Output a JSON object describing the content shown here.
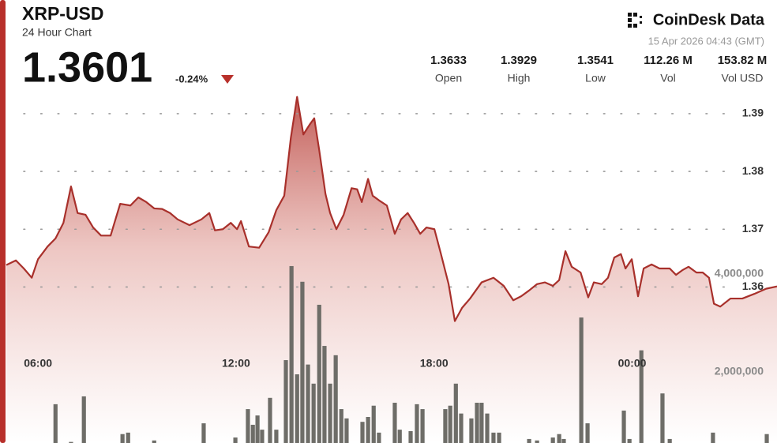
{
  "header": {
    "symbol": "XRP-USD",
    "subtitle": "24 Hour Chart",
    "price": "1.3601",
    "change": "-0.24%",
    "brand": "CoinDesk Data",
    "timestamp": "15 Apr 2026 04:43 (GMT)"
  },
  "stats": [
    {
      "value": "1.3633",
      "label": "Open"
    },
    {
      "value": "1.3929",
      "label": "High"
    },
    {
      "value": "1.3541",
      "label": "Low"
    },
    {
      "value": "112.26 M",
      "label": "Vol"
    },
    {
      "value": "153.82 M",
      "label": "Vol USD"
    }
  ],
  "chart_data": {
    "type": "line",
    "xlim": [
      5.04,
      28.39
    ],
    "xticks": [
      {
        "value": 6,
        "label": "06:00"
      },
      {
        "value": 12,
        "label": "12:00"
      },
      {
        "value": 18,
        "label": "18:00"
      },
      {
        "value": 24,
        "label": "00:00"
      }
    ],
    "ylim": [
      1.333,
      1.396
    ],
    "yticks": [
      1.36,
      1.37,
      1.38,
      1.39
    ],
    "y2lim": [
      548000,
      7980000
    ],
    "y2ticks": [
      {
        "value": 2000000,
        "label": "2,000,000"
      },
      {
        "value": 4000000,
        "label": "4,000,000"
      }
    ],
    "grid": true,
    "series": [
      {
        "name": "Price",
        "color": "#a8302b",
        "x": [
          5.04,
          5.33,
          5.57,
          5.81,
          6.0,
          6.29,
          6.53,
          6.77,
          7.0,
          7.2,
          7.44,
          7.67,
          7.91,
          8.2,
          8.49,
          8.8,
          9.04,
          9.28,
          9.52,
          9.76,
          10.0,
          10.23,
          10.59,
          10.95,
          11.19,
          11.36,
          11.6,
          11.84,
          12.03,
          12.15,
          12.39,
          12.7,
          12.99,
          13.22,
          13.46,
          13.66,
          13.85,
          14.04,
          14.23,
          14.37,
          14.52,
          14.71,
          14.85,
          15.04,
          15.26,
          15.5,
          15.67,
          15.81,
          16.0,
          16.14,
          16.33,
          16.57,
          16.81,
          17.0,
          17.2,
          17.39,
          17.58,
          17.77,
          18.01,
          18.2,
          18.44,
          18.63,
          18.85,
          19.09,
          19.44,
          19.8,
          20.11,
          20.4,
          20.64,
          20.88,
          21.12,
          21.36,
          21.6,
          21.79,
          21.98,
          22.17,
          22.44,
          22.67,
          22.84,
          23.08,
          23.27,
          23.46,
          23.66,
          23.8,
          23.99,
          24.18,
          24.35,
          24.59,
          24.83,
          25.14,
          25.33,
          25.52,
          25.71,
          25.95,
          26.14,
          26.33,
          26.48,
          26.67,
          26.98,
          27.34,
          27.7,
          28.06,
          28.39
        ],
        "values": [
          1.3638,
          1.3646,
          1.3632,
          1.3616,
          1.3648,
          1.367,
          1.3684,
          1.3711,
          1.3774,
          1.3728,
          1.3725,
          1.3703,
          1.3689,
          1.3689,
          1.3744,
          1.3741,
          1.3755,
          1.3747,
          1.3736,
          1.3735,
          1.3728,
          1.3717,
          1.3707,
          1.3717,
          1.3728,
          1.3698,
          1.37,
          1.3711,
          1.37,
          1.3714,
          1.367,
          1.3668,
          1.3695,
          1.3733,
          1.3758,
          1.3858,
          1.3929,
          1.3864,
          1.3881,
          1.3892,
          1.3837,
          1.3761,
          1.3728,
          1.37,
          1.3725,
          1.3771,
          1.3769,
          1.3747,
          1.3787,
          1.3758,
          1.375,
          1.3741,
          1.3692,
          1.3717,
          1.3728,
          1.3711,
          1.3692,
          1.3703,
          1.37,
          1.3659,
          1.3605,
          1.3541,
          1.3564,
          1.358,
          1.3608,
          1.3616,
          1.3602,
          1.3577,
          1.3584,
          1.3594,
          1.3605,
          1.3608,
          1.3602,
          1.3612,
          1.3662,
          1.3635,
          1.3625,
          1.3582,
          1.3608,
          1.3605,
          1.3616,
          1.3651,
          1.3657,
          1.3632,
          1.3648,
          1.3584,
          1.3632,
          1.3639,
          1.3632,
          1.3632,
          1.3621,
          1.3629,
          1.3635,
          1.3625,
          1.3625,
          1.3616,
          1.3571,
          1.3566,
          1.358,
          1.358,
          1.3588,
          1.3597,
          1.3601
        ]
      },
      {
        "name": "Volume",
        "type": "bar",
        "axis": "y2",
        "color": "#6e6d68",
        "x": [
          6.53,
          7.0,
          7.39,
          8.56,
          8.73,
          9.52,
          11.02,
          11.98,
          12.36,
          12.51,
          12.65,
          12.79,
          13.03,
          13.22,
          13.51,
          13.68,
          13.85,
          14.01,
          14.18,
          14.35,
          14.52,
          14.68,
          14.85,
          15.02,
          15.19,
          15.35,
          15.83,
          16.0,
          16.17,
          16.33,
          16.81,
          16.96,
          17.29,
          17.48,
          17.65,
          18.34,
          18.49,
          18.66,
          18.82,
          19.13,
          19.3,
          19.44,
          19.61,
          19.8,
          19.97,
          20.88,
          21.12,
          21.6,
          21.79,
          21.93,
          22.46,
          22.65,
          23.75,
          23.92,
          24.28,
          24.92,
          25.14,
          26.45,
          28.08
        ],
        "values": [
          1340000,
          570000,
          1500000,
          730000,
          760000,
          600000,
          950000,
          660000,
          1240000,
          920000,
          1110000,
          820000,
          1470000,
          820000,
          2240000,
          4160000,
          1950000,
          3840000,
          2150000,
          1760000,
          3370000,
          2530000,
          1760000,
          2340000,
          1240000,
          1050000,
          980000,
          1080000,
          1310000,
          760000,
          1370000,
          820000,
          790000,
          1340000,
          1240000,
          1240000,
          1310000,
          1760000,
          1150000,
          1050000,
          1370000,
          1370000,
          1150000,
          760000,
          760000,
          630000,
          600000,
          660000,
          730000,
          630000,
          3110000,
          950000,
          1210000,
          630000,
          2440000,
          1560000,
          630000,
          760000,
          730000
        ]
      }
    ]
  }
}
